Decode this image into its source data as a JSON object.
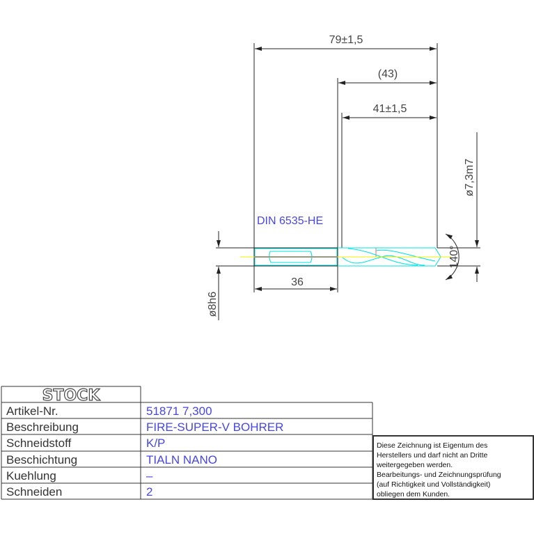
{
  "drawing": {
    "dim_overall": "79±1,5",
    "dim_ref": "(43)",
    "dim_flute": "41±1,5",
    "dim_shank_length": "36",
    "dim_shank_dia": "ø8h6",
    "dim_cut_dia": "ø7,3m7",
    "dim_angle": "140°",
    "standard": "DIN 6535-HE",
    "colors": {
      "outline": "#222222",
      "drill": "#00e0e0",
      "centerline": "#f0f000",
      "edge": "#ff6060",
      "text": "#4646e6"
    }
  },
  "title_block": {
    "logo": "STOCK",
    "rows": [
      {
        "label": "Artikel-Nr.",
        "value": "51871 7,300"
      },
      {
        "label": "Beschreibung",
        "value": "FIRE-SUPER-V BOHRER"
      },
      {
        "label": "Schneidstoff",
        "value": "K/P"
      },
      {
        "label": "Beschichtung",
        "value": "TIALN NANO"
      },
      {
        "label": "Kuehlung",
        "value": "–"
      },
      {
        "label": "Schneiden",
        "value": "2"
      }
    ],
    "note_lines": [
      "Diese Zeichnung ist Eigentum des",
      "Herstellers und darf nicht an Dritte",
      "weitergegeben werden.",
      "Bearbeitungs- und Zeichnungsprüfung",
      "(auf Richtigkeit und Vollständigkeit)",
      "obliegen dem Kunden."
    ]
  }
}
